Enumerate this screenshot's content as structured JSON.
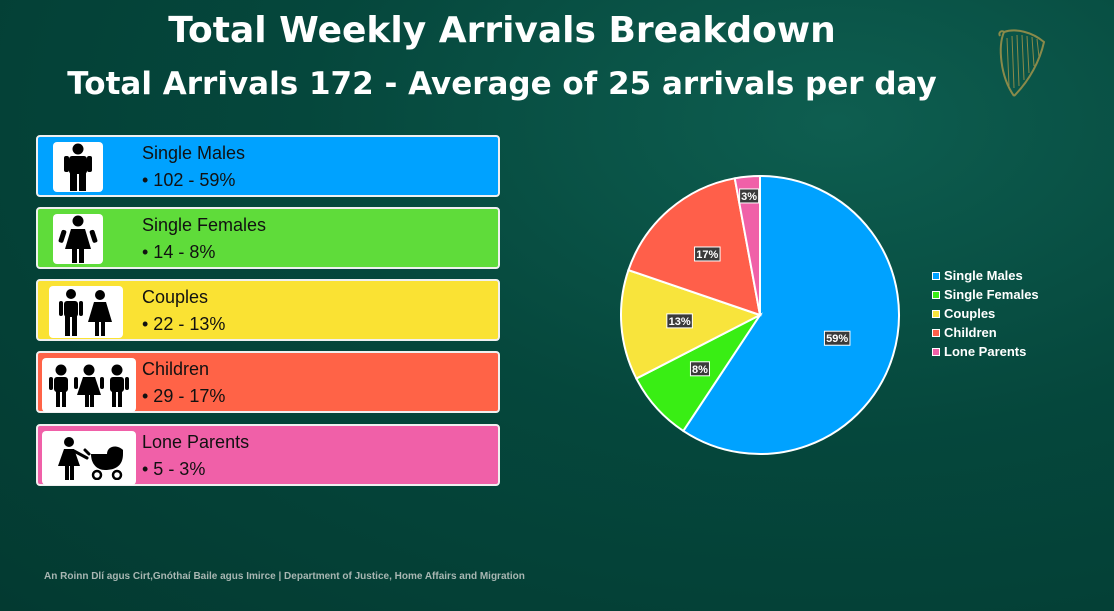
{
  "title": "Total Weekly Arrivals Breakdown",
  "subtitle": "Total Arrivals 172 - Average of 25 arrivals per day",
  "footer": "An Roinn Dlí agus Cirt,Gnóthaí Baile agus Imirce | Department of Justice, Home Affairs and Migration",
  "cards": [
    {
      "label": "Single Males",
      "value": "• 102 - 59%",
      "color": "#00a2ff",
      "icon": "single-male-icon"
    },
    {
      "label": "Single Females",
      "value": "• 14 - 8%",
      "color": "#5fdc3a",
      "icon": "single-female-icon"
    },
    {
      "label": "Couples",
      "value": "• 22 - 13%",
      "color": "#fae233",
      "icon": "couple-icon"
    },
    {
      "label": "Children",
      "value": "• 29 - 17%",
      "color": "#ff6347",
      "icon": "children-icon"
    },
    {
      "label": "Lone Parents",
      "value": "• 5 - 3%",
      "color": "#f060a8",
      "icon": "lone-parent-icon"
    }
  ],
  "chart_data": {
    "type": "pie",
    "title": "",
    "categories": [
      "Single Males",
      "Single Females",
      "Couples",
      "Children",
      "Lone Parents"
    ],
    "values": [
      102,
      14,
      22,
      29,
      5
    ],
    "labels": [
      "59%",
      "8%",
      "13%",
      "17%",
      "3%"
    ],
    "colors": [
      "#00a2ff",
      "#39ee14",
      "#f8e43c",
      "#ff5f4a",
      "#f060a8"
    ],
    "legend_position": "right"
  }
}
